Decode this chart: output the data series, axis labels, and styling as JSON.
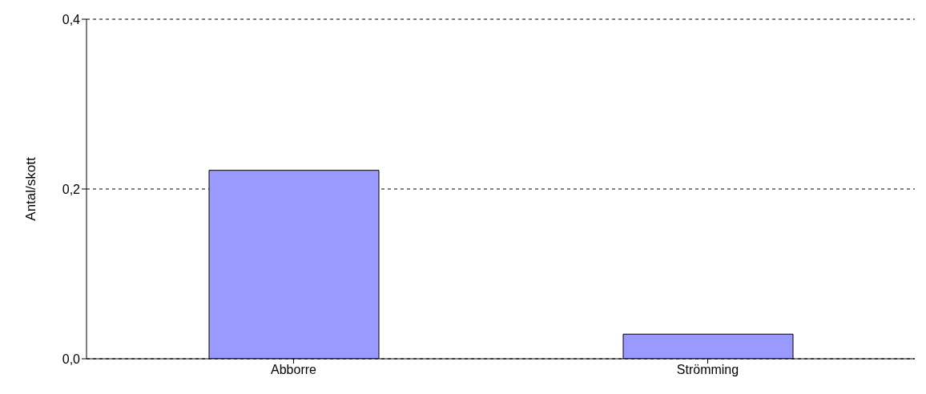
{
  "chart_data": {
    "type": "bar",
    "ylabel": "Antal/skott",
    "categories": [
      "Abborre",
      "Strömming"
    ],
    "values": [
      0.222,
      0.029
    ],
    "color": "#9999ff",
    "ylim": [
      0,
      0.4
    ],
    "yticks": [
      {
        "value": 0,
        "label": "0,0"
      },
      {
        "value": 0.2,
        "label": "0,2"
      },
      {
        "value": 0.4,
        "label": "0,4"
      }
    ],
    "grid": "y"
  }
}
